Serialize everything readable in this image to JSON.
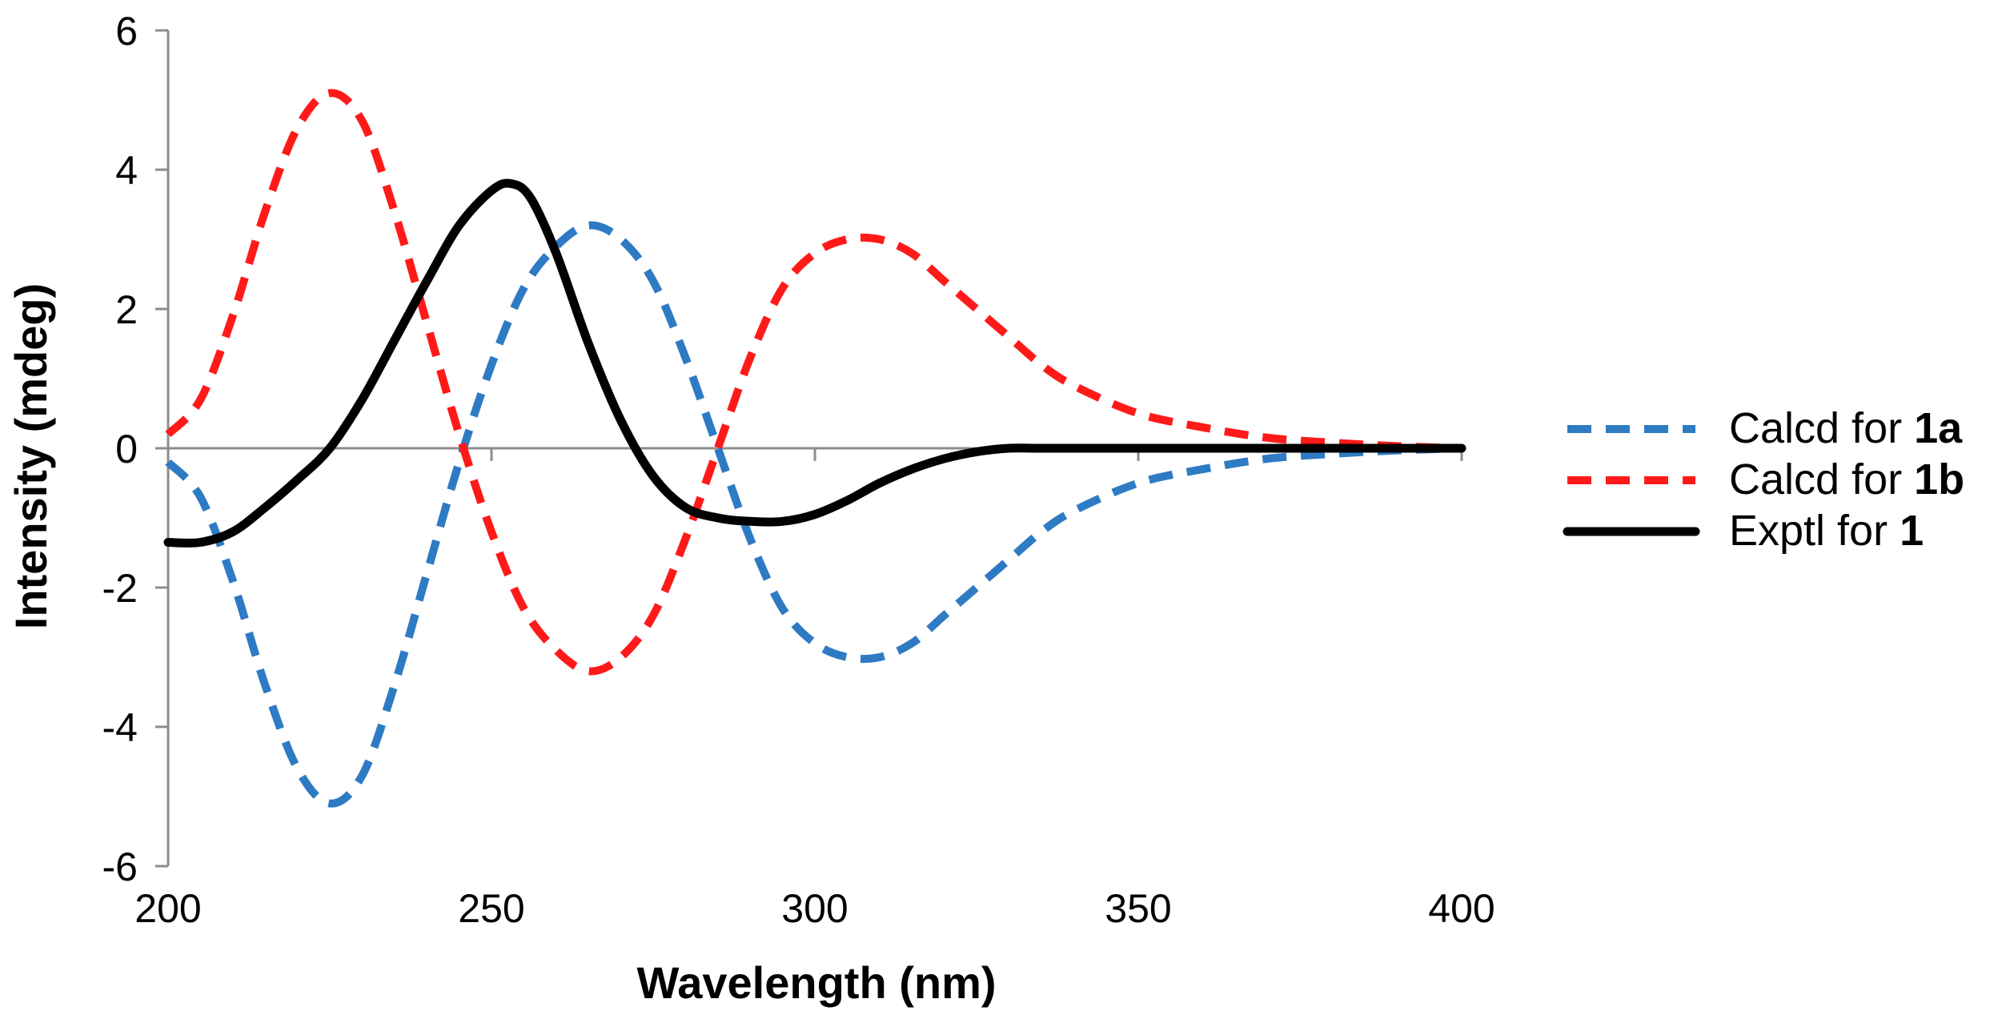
{
  "chart_data": {
    "type": "line",
    "title": "",
    "xlabel": "Wavelength (nm)",
    "ylabel": "Intensity (mdeg)",
    "xlim": [
      200,
      400
    ],
    "ylim": [
      -6,
      6
    ],
    "xticks": [
      200,
      250,
      300,
      350,
      400
    ],
    "yticks": [
      -6,
      -4,
      -2,
      0,
      2,
      4,
      6
    ],
    "x_tick_labels": [
      "200",
      "250",
      "300",
      "350",
      "400"
    ],
    "y_tick_labels": [
      "-6",
      "-4",
      "-2",
      "0",
      "2",
      "4",
      "6"
    ],
    "legend_position": "right",
    "series": [
      {
        "name_prefix": "Calcd for ",
        "name_bold": "1a",
        "color": "#2e7bc4",
        "style": "dashed",
        "x": [
          200,
          205,
          210,
          215,
          220,
          225,
          230,
          235,
          240,
          245,
          250,
          255,
          260,
          265,
          270,
          275,
          280,
          285,
          290,
          295,
          300,
          305,
          310,
          315,
          320,
          325,
          330,
          335,
          340,
          350,
          360,
          370,
          380,
          390,
          400
        ],
        "y": [
          -0.2,
          -0.7,
          -1.9,
          -3.4,
          -4.6,
          -5.1,
          -4.7,
          -3.4,
          -1.8,
          -0.2,
          1.2,
          2.3,
          2.9,
          3.2,
          3.0,
          2.4,
          1.3,
          0.0,
          -1.3,
          -2.3,
          -2.8,
          -3.0,
          -3.0,
          -2.8,
          -2.4,
          -2.0,
          -1.6,
          -1.2,
          -0.9,
          -0.5,
          -0.3,
          -0.15,
          -0.08,
          -0.03,
          0
        ]
      },
      {
        "name_prefix": "Calcd for ",
        "name_bold": "1b",
        "color": "#ff1a1a",
        "style": "dashed",
        "x": [
          200,
          205,
          210,
          215,
          220,
          225,
          230,
          235,
          240,
          245,
          250,
          255,
          260,
          265,
          270,
          275,
          280,
          285,
          290,
          295,
          300,
          305,
          310,
          315,
          320,
          325,
          330,
          335,
          340,
          350,
          360,
          370,
          380,
          390,
          400
        ],
        "y": [
          0.2,
          0.7,
          1.9,
          3.4,
          4.6,
          5.1,
          4.7,
          3.4,
          1.8,
          0.2,
          -1.2,
          -2.3,
          -2.9,
          -3.2,
          -3.0,
          -2.4,
          -1.3,
          0.0,
          1.3,
          2.3,
          2.8,
          3.0,
          3.0,
          2.8,
          2.4,
          2.0,
          1.6,
          1.2,
          0.9,
          0.5,
          0.3,
          0.15,
          0.08,
          0.03,
          0
        ]
      },
      {
        "name_prefix": "Exptl for ",
        "name_bold": "1",
        "color": "#000000",
        "style": "solid",
        "x": [
          200,
          205,
          210,
          215,
          220,
          225,
          230,
          235,
          240,
          245,
          250,
          253,
          256,
          260,
          265,
          270,
          275,
          280,
          285,
          290,
          295,
          300,
          305,
          310,
          315,
          320,
          325,
          330,
          335,
          340,
          350,
          360,
          370,
          380,
          390,
          400
        ],
        "y": [
          -1.35,
          -1.35,
          -1.2,
          -0.85,
          -0.45,
          0.0,
          0.7,
          1.55,
          2.4,
          3.2,
          3.7,
          3.8,
          3.6,
          2.8,
          1.5,
          0.4,
          -0.4,
          -0.85,
          -1.0,
          -1.05,
          -1.05,
          -0.95,
          -0.75,
          -0.5,
          -0.3,
          -0.15,
          -0.05,
          0,
          0,
          0,
          0,
          0,
          0,
          0,
          0,
          0
        ]
      }
    ]
  }
}
